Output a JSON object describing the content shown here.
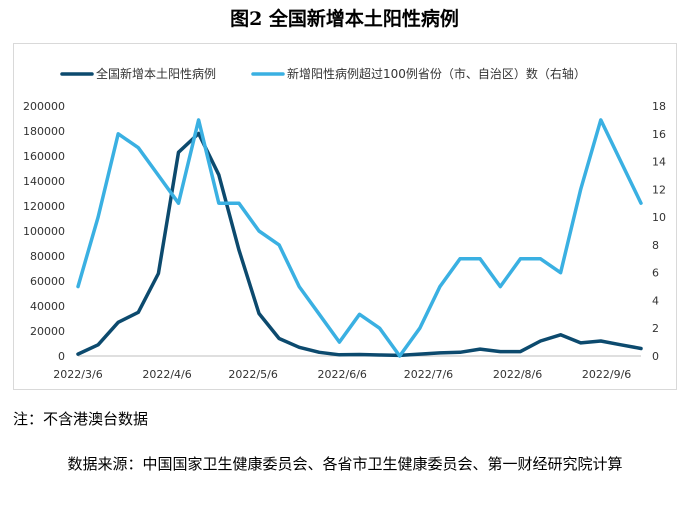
{
  "figure_title": "图2 全国新增本土阳性病例",
  "note": "注：不含港澳台数据",
  "source": "数据来源：中国国家卫生健康委员会、各省市卫生健康委员会、第一财经研究院计算",
  "colors": {
    "series1": "#0c4a6e",
    "series2": "#3ab0e2",
    "frame": "#d9d9d9",
    "axis": "#bfbfbf"
  },
  "chart_data": {
    "type": "line",
    "title": "",
    "x": [
      "2022/3/6",
      "2022/3/13",
      "2022/3/20",
      "2022/3/27",
      "2022/4/3",
      "2022/4/10",
      "2022/4/17",
      "2022/4/24",
      "2022/5/1",
      "2022/5/8",
      "2022/5/15",
      "2022/5/22",
      "2022/5/29",
      "2022/6/5",
      "2022/6/12",
      "2022/6/19",
      "2022/6/26",
      "2022/7/3",
      "2022/7/10",
      "2022/7/17",
      "2022/7/24",
      "2022/7/31",
      "2022/8/7",
      "2022/8/14",
      "2022/8/21",
      "2022/8/28",
      "2022/9/4",
      "2022/9/11",
      "2022/9/18"
    ],
    "x_tick_labels": [
      "2022/3/6",
      "2022/4/6",
      "2022/5/6",
      "2022/6/6",
      "2022/7/6",
      "2022/8/6",
      "2022/9/6"
    ],
    "x_tick_index": [
      0,
      4.43,
      8.71,
      13.14,
      17.43,
      21.86,
      26.29
    ],
    "y_left": {
      "ylim": [
        0,
        200000
      ],
      "ticks": [
        "0",
        "20000",
        "40000",
        "60000",
        "80000",
        "100000",
        "120000",
        "140000",
        "160000",
        "180000",
        "200000"
      ]
    },
    "y_right": {
      "ylim": [
        0,
        18
      ],
      "ticks": [
        "0",
        "2",
        "4",
        "6",
        "8",
        "10",
        "12",
        "14",
        "16",
        "18"
      ]
    },
    "legend_position": "top",
    "series": [
      {
        "name": "全国新增本土阳性病例",
        "axis": "left",
        "color": "#0c4a6e",
        "values": [
          1500,
          9000,
          27000,
          35000,
          66000,
          163000,
          178000,
          145000,
          85000,
          34000,
          14000,
          7000,
          3000,
          1000,
          1200,
          800,
          500,
          1500,
          2500,
          3000,
          5500,
          3500,
          3500,
          12000,
          17000,
          10500,
          12000,
          9000,
          6000
        ]
      },
      {
        "name": "新增阳性病例超过100例省份（市、自治区）数（右轴）",
        "axis": "right",
        "color": "#3ab0e2",
        "values": [
          5,
          10,
          16,
          15,
          13,
          11,
          17,
          11,
          11,
          9,
          8,
          5,
          3,
          1,
          3,
          2,
          0,
          2,
          5,
          7,
          7,
          5,
          7,
          7,
          6,
          12,
          17,
          14,
          11
        ]
      }
    ]
  }
}
